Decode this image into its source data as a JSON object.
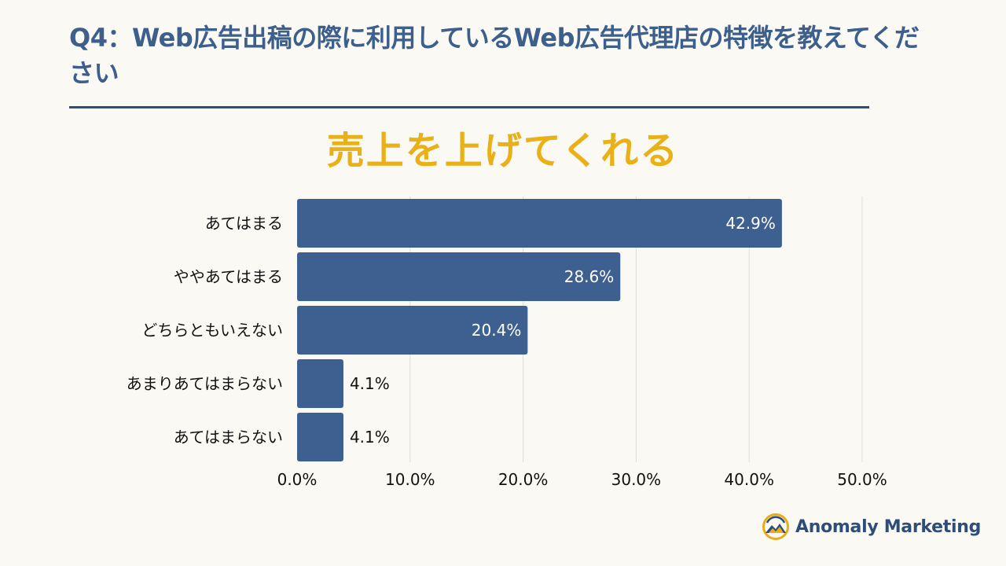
{
  "header": {
    "question": "Q4：Web広告出稿の際に利用しているWeb広告代理店の特徴を教えてください"
  },
  "colors": {
    "bar": "#3d6090",
    "title": "#eab017",
    "heading": "#3d5f8c",
    "rule": "#2d4e78",
    "grid": "#dedede",
    "label_inside": "#ffffff",
    "label_outside": "#111111"
  },
  "chart_data": {
    "type": "bar",
    "orientation": "horizontal",
    "title": "売上を上げてくれる",
    "categories": [
      "あてはまる",
      "ややあてはまる",
      "どちらともいえない",
      "あまりあてはまらない",
      "あてはまらない"
    ],
    "values": [
      42.9,
      28.6,
      20.4,
      4.1,
      4.1
    ],
    "value_labels": [
      "42.9%",
      "28.6%",
      "20.4%",
      "4.1%",
      "4.1%"
    ],
    "xlim": [
      0,
      50
    ],
    "ticks": [
      0,
      10,
      20,
      30,
      40,
      50
    ],
    "tick_labels": [
      "0.0%",
      "10.0%",
      "20.0%",
      "30.0%",
      "40.0%",
      "50.0%"
    ],
    "xlabel": "",
    "ylabel": "",
    "grid": true,
    "legend": "none"
  },
  "brand": {
    "name": "Anomaly Marketing",
    "logo_icon": "mountain-sun-logo-icon"
  }
}
